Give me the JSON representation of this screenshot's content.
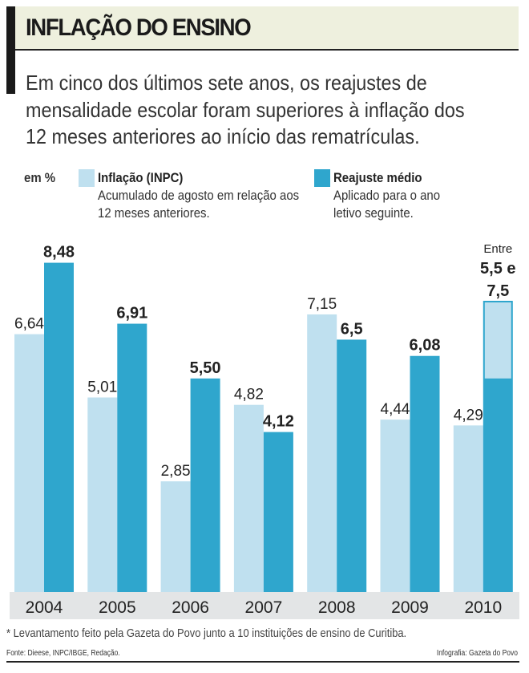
{
  "header": {
    "title": "INFLAÇÃO DO ENSINO",
    "subtitle": "Em cinco dos últimos sete anos, os reajustes de mensalidade escolar foram superiores à inflação dos 12 meses anteriores ao início das rematrículas."
  },
  "legend": {
    "unit": "em %",
    "items": [
      {
        "name": "Inflação (INPC)",
        "description": "Acumulado de agosto em relação aos 12 meses anteriores.",
        "color": "#bfe0ef"
      },
      {
        "name": "Reajuste médio",
        "description": "Aplicado para o ano letivo seguinte.",
        "color": "#2fa6cd"
      }
    ]
  },
  "chart_data": {
    "type": "bar",
    "categories": [
      "2004",
      "2005",
      "2006",
      "2007",
      "2008",
      "2009",
      "2010"
    ],
    "ylabel": "em %",
    "ylim": [
      0,
      8.5
    ],
    "grid": false,
    "legend_position": "top",
    "series": [
      {
        "name": "Inflação (INPC)",
        "color": "#bfe0ef",
        "values": [
          6.64,
          5.01,
          2.85,
          4.82,
          7.15,
          4.44,
          4.29
        ],
        "labels": [
          "6,64",
          "5,01",
          "2,85",
          "4,82",
          "7,15",
          "4,44",
          "4,29"
        ]
      },
      {
        "name": "Reajuste médio",
        "color": "#2fa6cd",
        "values": [
          8.48,
          6.91,
          5.5,
          4.12,
          6.5,
          6.08,
          [
            5.5,
            7.5
          ]
        ],
        "labels": [
          "8,48",
          "6,91",
          "5,50",
          "4,12",
          "6,5",
          "6,08",
          "7,5"
        ]
      }
    ],
    "annotations": {
      "range_prefix": "Entre",
      "range_low": "5,5 e"
    }
  },
  "footer": {
    "footnote": "* Levantamento feito pela Gazeta do Povo junto a 10 instituições de ensino de Curitiba.",
    "source": "Fonte: Dieese, INPC/IBGE, Redação.",
    "credit": "Infografia: Gazeta do Povo"
  }
}
